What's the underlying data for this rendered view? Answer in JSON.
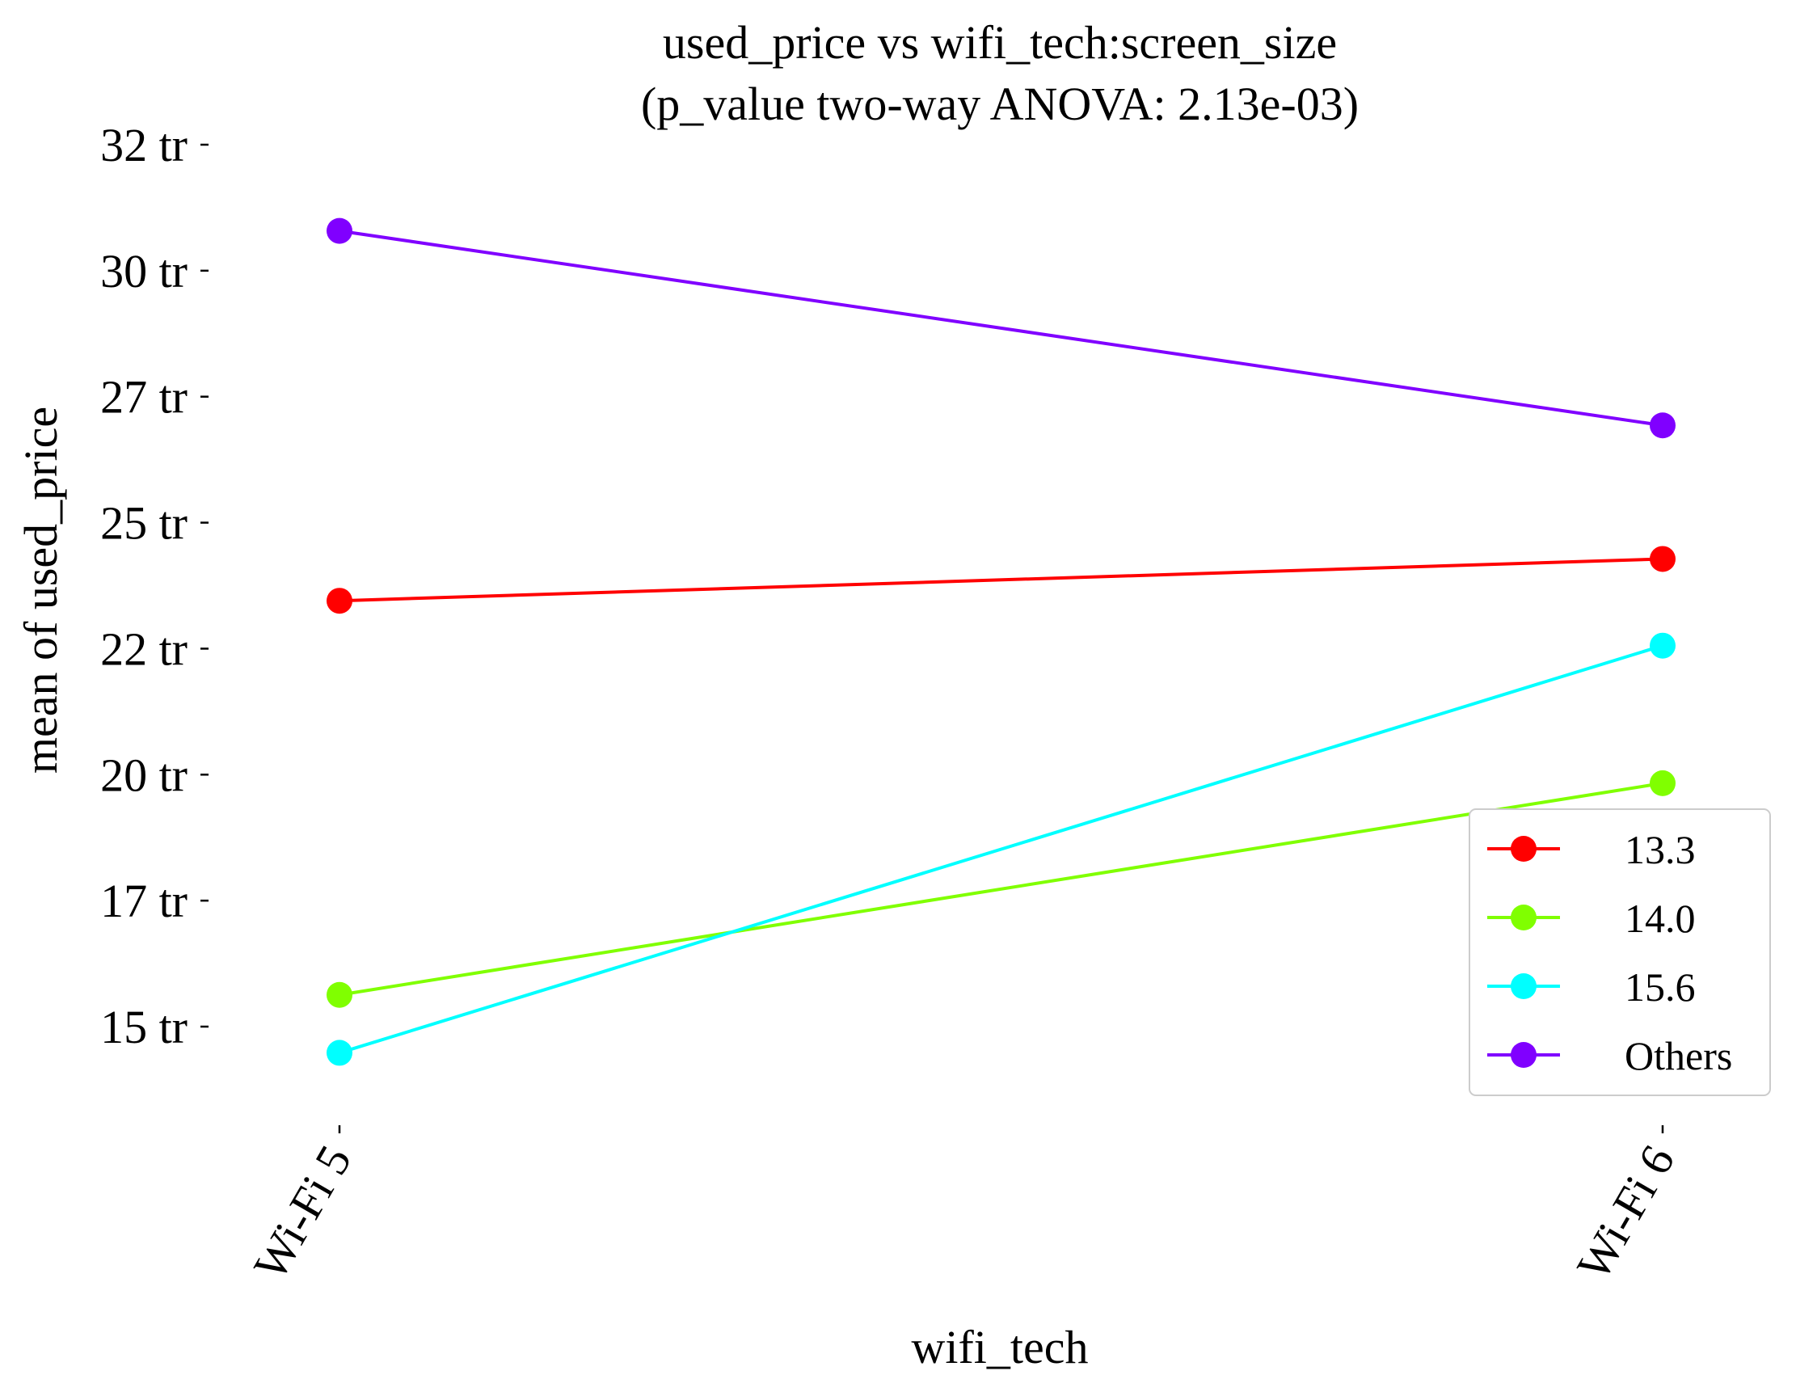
{
  "chart_data": {
    "type": "line",
    "title": "used_price vs wifi_tech:screen_size",
    "subtitle": "(p_value two-way ANOVA: 2.13e-03)",
    "xlabel": "wifi_tech",
    "ylabel": "mean of used_price",
    "categories": [
      "Wi-Fi 5",
      "Wi-Fi 6"
    ],
    "y_ticks": [
      15000000,
      17500000,
      20000000,
      22500000,
      25000000,
      27500000,
      30000000,
      32500000
    ],
    "y_tick_labels": [
      "15 tr",
      "17 tr",
      "20 tr",
      "22 tr",
      "25 tr",
      "27 tr",
      "30 tr",
      "32 tr"
    ],
    "ylim": [
      13000000,
      33000000
    ],
    "grid": false,
    "legend_position": "lower-right",
    "series": [
      {
        "name": "13.3",
        "color": "#ff0000",
        "values": [
          23450000,
          24280000
        ]
      },
      {
        "name": "14.0",
        "color": "#80ff00",
        "values": [
          15630000,
          19830000
        ]
      },
      {
        "name": "15.6",
        "color": "#00ffff",
        "values": [
          14480000,
          22560000
        ]
      },
      {
        "name": "Others",
        "color": "#8000ff",
        "values": [
          30790000,
          26930000
        ]
      }
    ]
  }
}
